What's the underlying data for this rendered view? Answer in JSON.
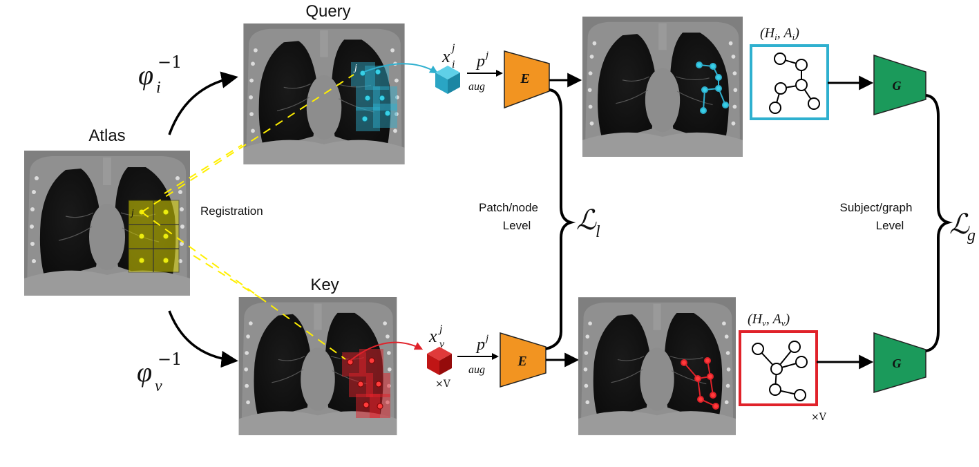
{
  "labels": {
    "atlas": "Atlas",
    "query": "Query",
    "key": "Key",
    "registration": "Registration",
    "patch_level_line1": "Patch/node",
    "patch_level_line2": "Level",
    "subject_level_line1": "Subject/graph",
    "subject_level_line2": "Level",
    "phi_i": "φ",
    "phi_i_sub": "i",
    "phi_i_sup": "−1",
    "phi_v": "φ",
    "phi_v_sub": "v",
    "phi_v_sup": "−1",
    "x_i": "x",
    "x_i_sub": "i",
    "x_i_sup": "j",
    "x_v": "x",
    "x_v_sub": "v",
    "x_v_sup": "j",
    "p_top": "p",
    "p_top_sup": "j",
    "aug_top": "aug",
    "p_bottom": "p",
    "p_bottom_sup": "j",
    "aug_bottom": "aug",
    "times_v_key": "×V",
    "times_v_graph": "×V",
    "encoder_top": "E",
    "encoder_bottom": "E",
    "generator_top": "G",
    "generator_bottom": "G",
    "loss_local": "ℒ",
    "loss_local_sub": "l",
    "loss_global": "ℒ",
    "loss_global_sub": "g",
    "graph_query_label": "(H",
    "graph_query_label_sub": "i",
    "graph_query_label_mid": ", A",
    "graph_query_label_sub2": "i",
    "graph_query_label_end": ")",
    "graph_key_label": "(H",
    "graph_key_label_sub": "v",
    "graph_key_label_mid": ", A",
    "graph_key_label_sub2": "v",
    "graph_key_label_end": ")",
    "patch_index_atlas": "j",
    "patch_index_query": "j",
    "patch_index_key": "j"
  },
  "colors": {
    "encoder": "#f29421",
    "generator": "#1b9a5b",
    "query_accent": "#2fb0cf",
    "key_accent": "#e0222a",
    "atlas_patch": "#d9d300",
    "dashed": "#ffef00"
  }
}
